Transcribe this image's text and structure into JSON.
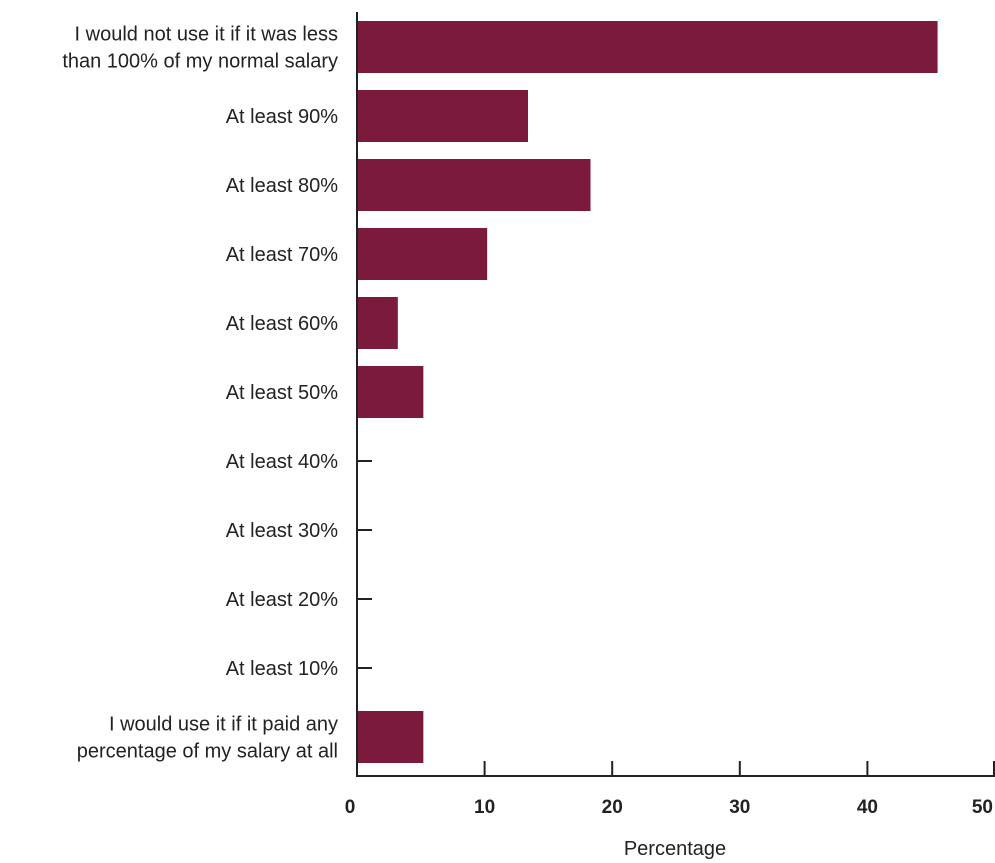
{
  "chart_data": {
    "type": "bar",
    "orientation": "horizontal",
    "categories": [
      [
        "I would not use it if it was less",
        "than 100% of my normal salary"
      ],
      [
        "At least 90%"
      ],
      [
        "At least 80%"
      ],
      [
        "At least 70%"
      ],
      [
        "At least 60%"
      ],
      [
        "At least 50%"
      ],
      [
        "At least 40%"
      ],
      [
        "At least 30%"
      ],
      [
        "At least 20%"
      ],
      [
        "At least 10%"
      ],
      [
        "I would use it if it paid any",
        "percentage of my salary at all"
      ]
    ],
    "values": [
      45.5,
      13.4,
      18.3,
      10.2,
      3.2,
      5.2,
      0,
      0,
      0,
      0,
      5.2
    ],
    "xlim": [
      0,
      50
    ],
    "xticks": [
      "0",
      "10",
      "20",
      "30",
      "40",
      "50"
    ],
    "xlabel": "Percentage",
    "ylabel": "",
    "title": "",
    "bar_color": "#7b1a3d",
    "grid": false,
    "legend": "none"
  }
}
